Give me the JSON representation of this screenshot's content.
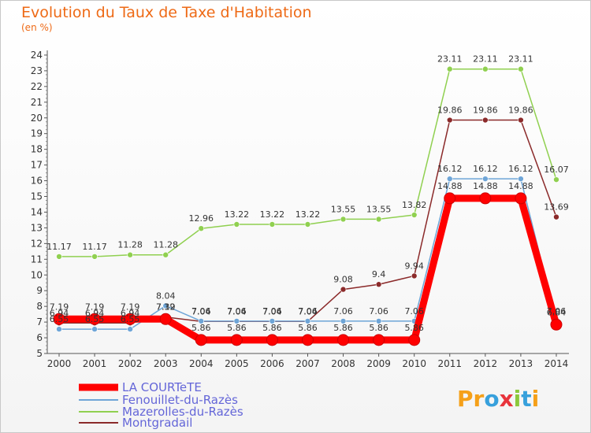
{
  "header": {
    "title": "Evolution du Taux de Taxe d'Habitation",
    "unit": "(en %)"
  },
  "logo": {
    "letters": [
      "P",
      "r",
      "o",
      "x",
      "i",
      "t",
      "i"
    ],
    "colors": [
      "#f5a019",
      "#f5a019",
      "#37a0dc",
      "#e8343c",
      "#8cc83c",
      "#37a0dc",
      "#f5a019"
    ]
  },
  "chart_data": {
    "type": "line",
    "title": "Evolution du Taux de Taxe d'Habitation",
    "subtitle": "(en %)",
    "x": [
      "2000",
      "2001",
      "2002",
      "2003",
      "2004",
      "2005",
      "2006",
      "2007",
      "2008",
      "2009",
      "2010",
      "2011",
      "2012",
      "2013",
      "2014"
    ],
    "ylim": [
      5,
      24
    ],
    "yticks": [
      "5",
      "6",
      "7",
      "8",
      "9",
      "10",
      "11",
      "12",
      "13",
      "14",
      "15",
      "16",
      "17",
      "18",
      "19",
      "20",
      "21",
      "22",
      "23",
      "24"
    ],
    "grid": false,
    "legend": "bottom-left",
    "series": [
      {
        "name": "LA COURTeTE",
        "color": "#ff0000",
        "values": [
          7.19,
          7.19,
          7.19,
          7.19,
          5.86,
          5.86,
          5.86,
          5.86,
          5.86,
          5.86,
          5.86,
          14.88,
          14.88,
          14.88,
          6.84
        ],
        "labels": [
          "7.19",
          "7.19",
          "7.19",
          "7.19",
          "5.86",
          "5.86",
          "5.86",
          "5.86",
          "5.86",
          "5.86",
          "5.86",
          "14.88",
          "14.88",
          "14.88",
          "6.84"
        ]
      },
      {
        "name": "Fenouillet-du-Razès",
        "color": "#6ea5d7",
        "values": [
          6.55,
          6.55,
          6.55,
          8.04,
          7.06,
          7.06,
          7.06,
          7.06,
          7.06,
          7.06,
          7.06,
          16.12,
          16.12,
          16.12,
          7.06
        ],
        "labels": [
          "6.55",
          "6.55",
          "6.55",
          "8.04",
          "7.06",
          "7.06",
          "7.06",
          "7.06",
          "7.06",
          "7.06",
          "7.06",
          "16.12",
          "16.12",
          "16.12",
          "7.06"
        ]
      },
      {
        "name": "Mazerolles-du-Razès",
        "color": "#90d050",
        "values": [
          11.17,
          11.17,
          11.28,
          11.28,
          12.96,
          13.22,
          13.22,
          13.22,
          13.55,
          13.55,
          13.82,
          23.11,
          23.11,
          23.11,
          16.07
        ],
        "labels": [
          "11.17",
          "11.17",
          "11.28",
          "11.28",
          "12.96",
          "13.22",
          "13.22",
          "13.22",
          "13.55",
          "13.55",
          "13.82",
          "23.11",
          "23.11",
          "23.11",
          "16.07"
        ]
      },
      {
        "name": "Montgradail",
        "color": "#8b2a2a",
        "values": [
          6.94,
          6.94,
          6.94,
          7.32,
          7.04,
          7.04,
          7.04,
          7.04,
          9.08,
          9.4,
          9.94,
          19.86,
          19.86,
          19.86,
          13.69
        ],
        "labels": [
          "6.94",
          "6.94",
          "6.94",
          "7.32",
          "7.04",
          "7.04",
          "7.04",
          "7.04",
          "9.08",
          "9.4",
          "9.94",
          "19.86",
          "19.86",
          "19.86",
          "13.69"
        ]
      }
    ]
  }
}
